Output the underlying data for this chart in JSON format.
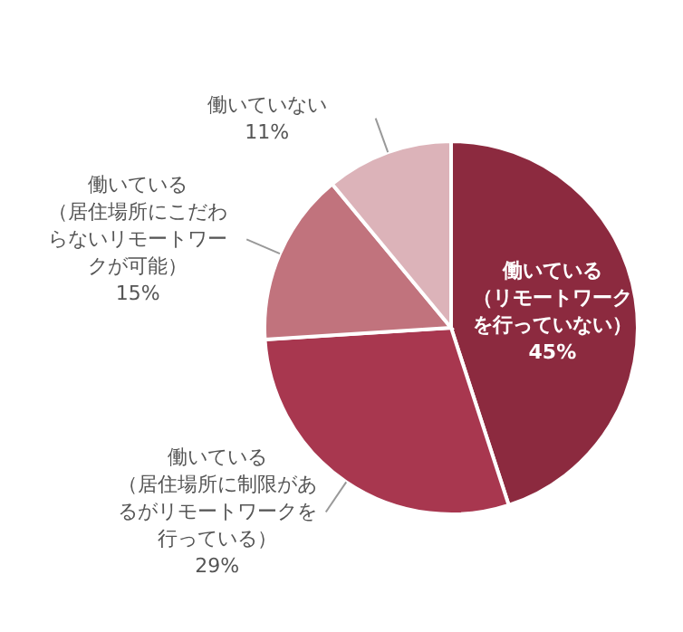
{
  "chart_data": {
    "type": "pie",
    "categories": [
      "働いている（リモートワークを行っていない）",
      "働いている（居住場所に制限があるがリモートワークを行っている）",
      "働いている（居住場所にこだわらないリモートワークが可能）",
      "働いていない"
    ],
    "values": [
      45,
      29,
      15,
      11
    ],
    "value_labels": [
      "45%",
      "29%",
      "15%",
      "11%"
    ],
    "colors": [
      "#8c2a3f",
      "#a8374f",
      "#c1737d",
      "#dcb3b9"
    ],
    "legend": false
  }
}
